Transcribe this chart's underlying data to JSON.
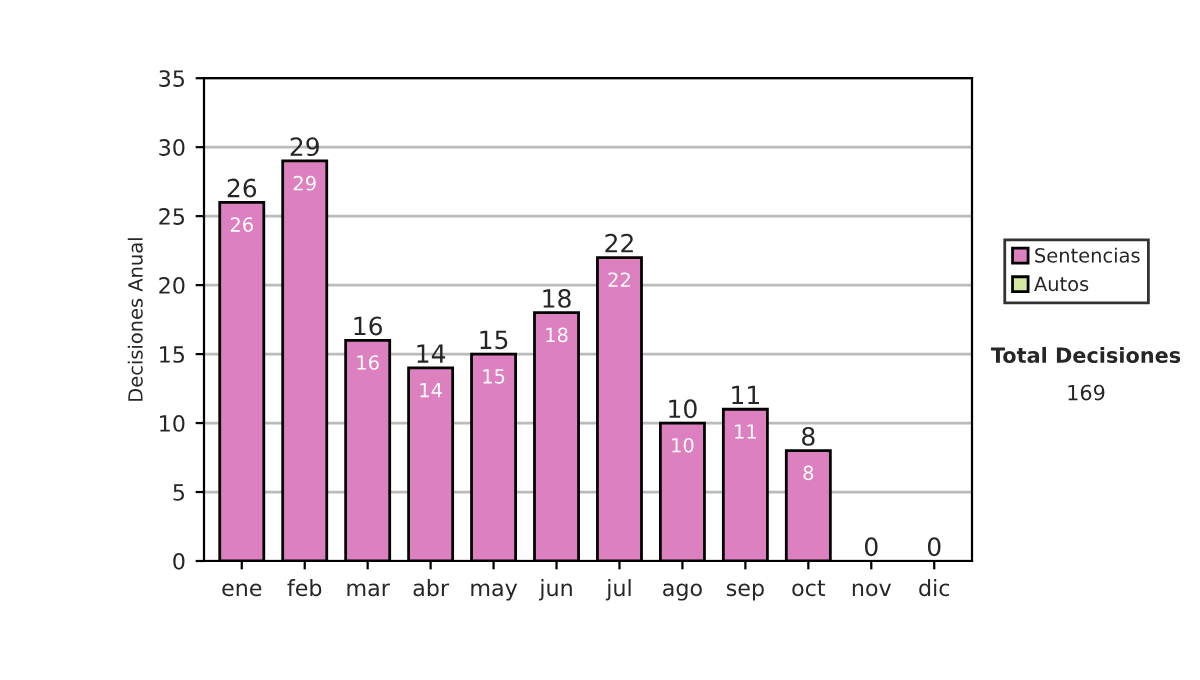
{
  "chart_data": {
    "type": "bar",
    "ylabel": "Decisiones Anual",
    "stacked": true,
    "categories": [
      "ene",
      "feb",
      "mar",
      "abr",
      "may",
      "jun",
      "jul",
      "ago",
      "sep",
      "oct",
      "nov",
      "dic"
    ],
    "series": [
      {
        "name": "Sentencias",
        "color": "#dd80c0",
        "values": [
          26,
          29,
          16,
          14,
          15,
          18,
          22,
          10,
          11,
          8,
          0,
          0
        ],
        "value_labels": [
          "26",
          "29",
          "16",
          "14",
          "15",
          "18",
          "22",
          "10",
          "11",
          "8",
          null,
          null
        ]
      },
      {
        "name": "Autos",
        "color": "#d4e8a4",
        "values": [
          0,
          0,
          0,
          0,
          0,
          0,
          0,
          0,
          0,
          0,
          0,
          0
        ]
      }
    ],
    "totals": [
      "26",
      "29",
      "16",
      "14",
      "15",
      "18",
      "22",
      "10",
      "11",
      "8",
      "0",
      "0"
    ],
    "ylim": [
      0,
      35
    ],
    "yticks": [
      0,
      5,
      10,
      15,
      20,
      25,
      30,
      35
    ],
    "grid": "y",
    "legend": "right",
    "annotations": [
      "Total Decisiones",
      "169"
    ]
  }
}
